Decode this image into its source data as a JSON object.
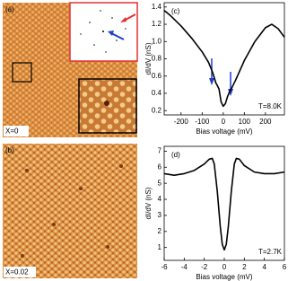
{
  "images": [
    {
      "panel_label": "(a)",
      "annotation": "X=0"
    },
    {
      "panel_label": "(b)",
      "annotation": "X=0.02"
    }
  ],
  "chart_data": [
    {
      "type": "line",
      "panel_label": "(c)",
      "annotation": "T=8.0K",
      "xlabel": "Bias voltage (mV)",
      "ylabel": "dI/dV (nS)",
      "x": [
        -280,
        -250,
        -200,
        -150,
        -100,
        -70,
        -50,
        -35,
        -30,
        -20,
        -10,
        0,
        10,
        20,
        30,
        40,
        60,
        100,
        150,
        200,
        230,
        260,
        290
      ],
      "series": [
        {
          "color": "#000000",
          "values": [
            1.36,
            1.3,
            1.18,
            1.04,
            0.88,
            0.76,
            0.64,
            0.52,
            0.5,
            0.45,
            0.3,
            0.25,
            0.28,
            0.36,
            0.42,
            0.46,
            0.56,
            0.78,
            1.0,
            1.16,
            1.2,
            1.15,
            1.05
          ]
        }
      ],
      "xlim": [
        -280,
        290
      ],
      "xticks": [
        -200,
        -100,
        0,
        100,
        200
      ],
      "ylim": [
        0.15,
        1.45
      ],
      "yticks": [
        0.2,
        0.4,
        0.6,
        0.8,
        {
          "value": 1,
          "label": "1.0"
        },
        1.2,
        1.4
      ]
    },
    {
      "type": "line",
      "panel_label": "(d)",
      "annotation": "T=2.7K",
      "xlabel": "Bias voltage (mV)",
      "ylabel": "dI/dV (nS)",
      "x": [
        -6,
        -5,
        -4,
        -3,
        -2,
        -1.5,
        -1.2,
        -1,
        -0.7,
        -0.4,
        -0.2,
        0,
        0.2,
        0.4,
        0.7,
        1,
        1.2,
        1.5,
        2,
        3,
        4,
        5,
        6
      ],
      "series": [
        {
          "color": "#000000",
          "values": [
            5.6,
            5.5,
            5.6,
            5.8,
            6.2,
            6.5,
            6.55,
            6.2,
            4.5,
            2.3,
            1.2,
            0.85,
            1.2,
            2.3,
            4.5,
            6.2,
            6.55,
            6.5,
            6.1,
            5.7,
            5.6,
            5.6,
            5.7
          ]
        }
      ],
      "xlim": [
        -6,
        6
      ],
      "xticks": [
        -6,
        -4,
        -2,
        0,
        2,
        4,
        6
      ],
      "ylim": [
        0.2,
        7.3
      ],
      "yticks": [
        1,
        2,
        3,
        4,
        5,
        6,
        7
      ]
    }
  ]
}
